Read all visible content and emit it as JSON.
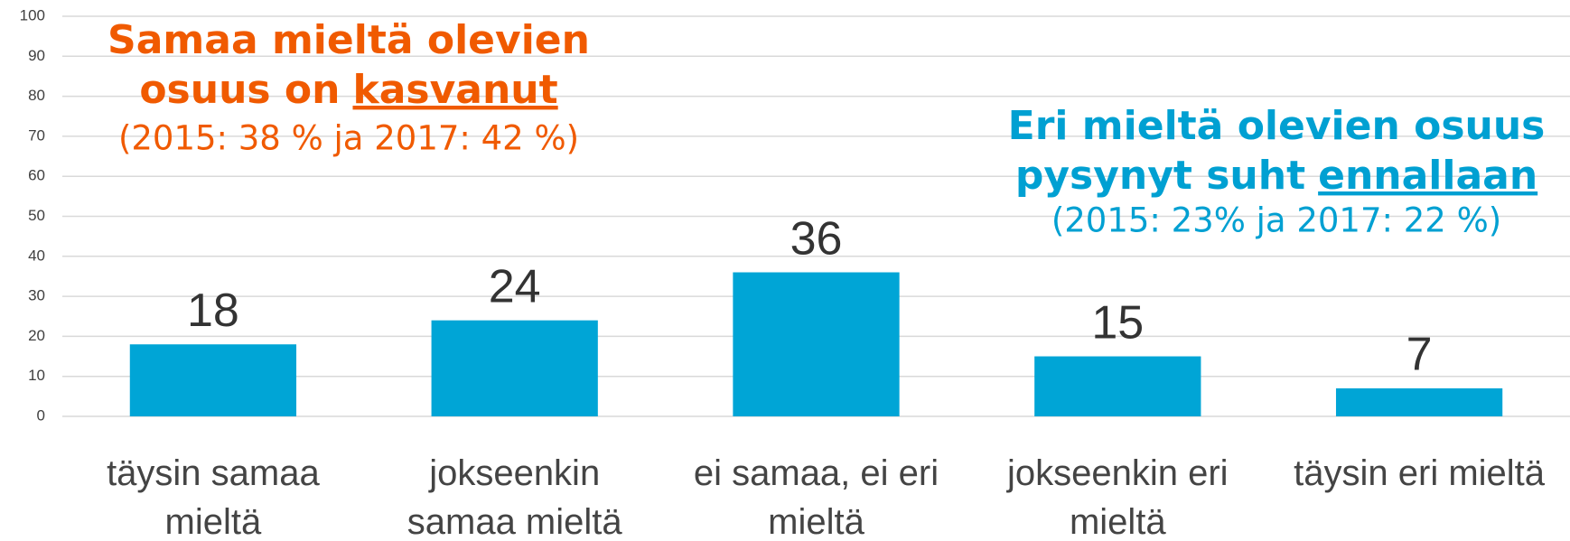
{
  "chart_data": {
    "type": "bar",
    "categories": [
      "täysin samaa mieltä",
      "jokseenkin samaa mieltä",
      "ei samaa, ei eri mieltä",
      "jokseenkin eri mieltä",
      "täysin eri mieltä"
    ],
    "values": [
      18,
      24,
      36,
      15,
      7
    ],
    "color": "#00a5d6",
    "ylim": [
      0,
      100
    ],
    "yticks": [
      0,
      10,
      20,
      30,
      40,
      50,
      60,
      70,
      80,
      90,
      100
    ],
    "grid": true,
    "annotations": [
      {
        "lines": [
          "Samaa mieltä olevien",
          "osuus on"
        ],
        "underlined": "kasvanut",
        "note": "(2015: 38 % ja 2017: 42 %)",
        "color": "#f05a00"
      },
      {
        "lines": [
          "Eri mieltä olevien osuus",
          "pysynyt suht"
        ],
        "underlined": "ennallaan",
        "note": "(2015: 23% ja 2017: 22 %)",
        "color": "#00a0d2"
      }
    ]
  }
}
